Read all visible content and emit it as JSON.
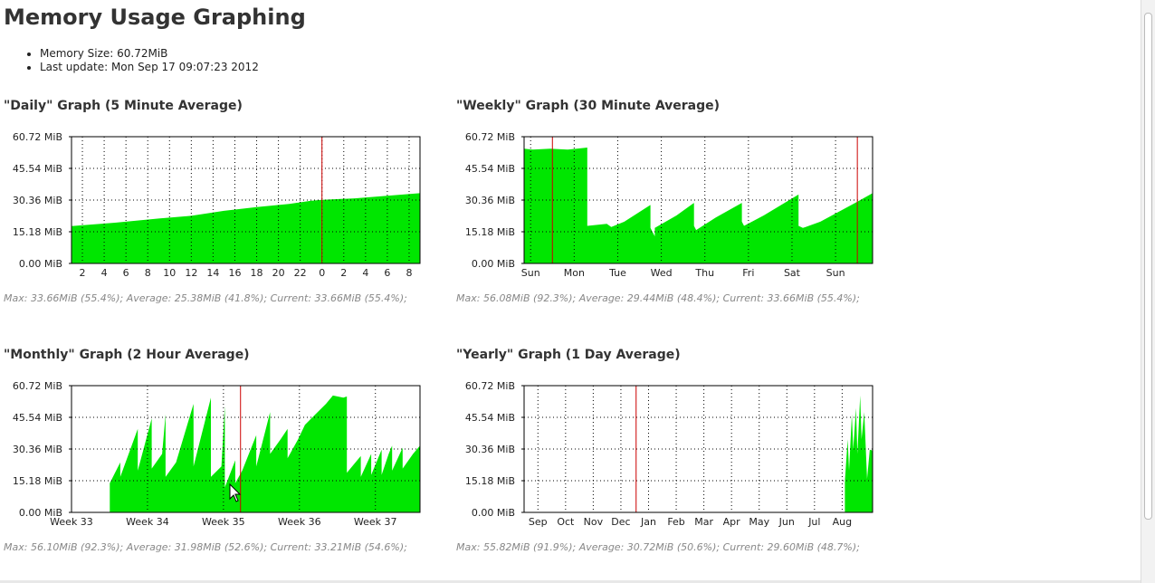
{
  "page": {
    "title": "Memory Usage Graphing",
    "info": [
      "Memory Size: 60.72MiB",
      "Last update: Mon Sep 17 09:07:23 2012"
    ]
  },
  "colors": {
    "fill": "#00e600",
    "marker": "#cc0000",
    "grid": "#000000"
  },
  "chart_data": [
    {
      "type": "area",
      "title": "\"Daily\" Graph (5 Minute Average)",
      "ylim": [
        0,
        60.72
      ],
      "yticks": [
        {
          "value": 60.72,
          "label": "60.72 MiB"
        },
        {
          "value": 45.54,
          "label": "45.54 MiB"
        },
        {
          "value": 30.36,
          "label": "30.36 MiB"
        },
        {
          "value": 15.18,
          "label": "15.18 MiB"
        },
        {
          "value": 0,
          "label": "0.00 MiB"
        }
      ],
      "xlim": [
        0,
        32
      ],
      "xticks": [
        {
          "x": 1,
          "label": "2"
        },
        {
          "x": 3,
          "label": "4"
        },
        {
          "x": 5,
          "label": "6"
        },
        {
          "x": 7,
          "label": "8"
        },
        {
          "x": 9,
          "label": "10"
        },
        {
          "x": 11,
          "label": "12"
        },
        {
          "x": 13,
          "label": "14"
        },
        {
          "x": 15,
          "label": "16"
        },
        {
          "x": 17,
          "label": "18"
        },
        {
          "x": 19,
          "label": "20"
        },
        {
          "x": 21,
          "label": "22"
        },
        {
          "x": 23,
          "label": "0"
        },
        {
          "x": 25,
          "label": "2"
        },
        {
          "x": 27,
          "label": "4"
        },
        {
          "x": 29,
          "label": "6"
        },
        {
          "x": 31,
          "label": "8"
        }
      ],
      "marker_x": 23,
      "points": [
        [
          0,
          17.9
        ],
        [
          4,
          19.5
        ],
        [
          8,
          21.5
        ],
        [
          11,
          22.8
        ],
        [
          14,
          25.2
        ],
        [
          17,
          27.0
        ],
        [
          20,
          28.5
        ],
        [
          22,
          30.0
        ],
        [
          23,
          30.5
        ],
        [
          26,
          31.2
        ],
        [
          29,
          32.4
        ],
        [
          32,
          33.66
        ]
      ],
      "stats": "Max: 33.66MiB (55.4%); Average: 25.38MiB (41.8%); Current: 33.66MiB (55.4%);"
    },
    {
      "type": "area",
      "title": "\"Weekly\" Graph (30 Minute Average)",
      "ylim": [
        0,
        60.72
      ],
      "yticks": [
        {
          "value": 60.72,
          "label": "60.72 MiB"
        },
        {
          "value": 45.54,
          "label": "45.54 MiB"
        },
        {
          "value": 30.36,
          "label": "30.36 MiB"
        },
        {
          "value": 15.18,
          "label": "15.18 MiB"
        },
        {
          "value": 0,
          "label": "0.00 MiB"
        }
      ],
      "xlim": [
        0,
        8
      ],
      "xticks": [
        {
          "x": 0.15,
          "label": "Sun"
        },
        {
          "x": 1.15,
          "label": "Mon"
        },
        {
          "x": 2.15,
          "label": "Tue"
        },
        {
          "x": 3.15,
          "label": "Wed"
        },
        {
          "x": 4.15,
          "label": "Thu"
        },
        {
          "x": 5.15,
          "label": "Fri"
        },
        {
          "x": 6.15,
          "label": "Sat"
        },
        {
          "x": 7.15,
          "label": "Sun"
        }
      ],
      "marker_x": [
        0.65,
        7.65
      ],
      "points": [
        [
          0,
          55
        ],
        [
          0.2,
          54.5
        ],
        [
          0.6,
          55
        ],
        [
          1.0,
          54.5
        ],
        [
          1.45,
          55.5
        ],
        [
          1.45,
          18
        ],
        [
          1.9,
          19
        ],
        [
          2.0,
          17.5
        ],
        [
          2.3,
          20
        ],
        [
          2.9,
          28
        ],
        [
          2.9,
          17
        ],
        [
          3.0,
          13
        ],
        [
          3.0,
          17
        ],
        [
          3.5,
          23
        ],
        [
          3.9,
          29
        ],
        [
          3.9,
          18
        ],
        [
          3.95,
          16
        ],
        [
          4.4,
          22
        ],
        [
          5.0,
          29
        ],
        [
          5.0,
          20
        ],
        [
          5.05,
          18
        ],
        [
          5.5,
          23
        ],
        [
          6.3,
          33
        ],
        [
          6.3,
          18
        ],
        [
          6.4,
          17
        ],
        [
          6.8,
          20
        ],
        [
          7.6,
          29
        ],
        [
          8,
          33.66
        ]
      ],
      "stats": "Max: 56.08MiB (92.3%); Average: 29.44MiB (48.4%); Current: 33.66MiB (55.4%);"
    },
    {
      "type": "area",
      "title": "\"Monthly\" Graph (2 Hour Average)",
      "ylim": [
        0,
        60.72
      ],
      "yticks": [
        {
          "value": 60.72,
          "label": "60.72 MiB"
        },
        {
          "value": 45.54,
          "label": "45.54 MiB"
        },
        {
          "value": 30.36,
          "label": "30.36 MiB"
        },
        {
          "value": 15.18,
          "label": "15.18 MiB"
        },
        {
          "value": 0,
          "label": "0.00 MiB"
        }
      ],
      "xlim": [
        0,
        100
      ],
      "xticks": [
        {
          "x": 0,
          "label": "Week 33"
        },
        {
          "x": 21.8,
          "label": "Week 34"
        },
        {
          "x": 43.6,
          "label": "Week 35"
        },
        {
          "x": 65.4,
          "label": "Week 36"
        },
        {
          "x": 87.2,
          "label": "Week 37"
        }
      ],
      "marker_x": 48.5,
      "points": [
        [
          0,
          0
        ],
        [
          11,
          0
        ],
        [
          11,
          14
        ],
        [
          14,
          24
        ],
        [
          14,
          17
        ],
        [
          19,
          40
        ],
        [
          19,
          20
        ],
        [
          23,
          45
        ],
        [
          23,
          21
        ],
        [
          26,
          28
        ],
        [
          27,
          47
        ],
        [
          27,
          17
        ],
        [
          30,
          24
        ],
        [
          35,
          52
        ],
        [
          35,
          22
        ],
        [
          40,
          55
        ],
        [
          40,
          17
        ],
        [
          43,
          22
        ],
        [
          44,
          51
        ],
        [
          44,
          12
        ],
        [
          47,
          25
        ],
        [
          47,
          14
        ],
        [
          49,
          20
        ],
        [
          53,
          37
        ],
        [
          53,
          22
        ],
        [
          57,
          48
        ],
        [
          57,
          28
        ],
        [
          60,
          35
        ],
        [
          62,
          40
        ],
        [
          62,
          26
        ],
        [
          65,
          35
        ],
        [
          67,
          42
        ],
        [
          70,
          47
        ],
        [
          73,
          52
        ],
        [
          75,
          56
        ],
        [
          78,
          55
        ],
        [
          79,
          55.5
        ],
        [
          79,
          19
        ],
        [
          83,
          27
        ],
        [
          83,
          17
        ],
        [
          86,
          28
        ],
        [
          86,
          18
        ],
        [
          89,
          30
        ],
        [
          89,
          18
        ],
        [
          91,
          28
        ],
        [
          92,
          32
        ],
        [
          92,
          20
        ],
        [
          95,
          31
        ],
        [
          95,
          21
        ],
        [
          98,
          28
        ],
        [
          100,
          32
        ]
      ],
      "stats": "Max: 56.10MiB (92.3%); Average: 31.98MiB (52.6%); Current: 33.21MiB (54.6%);"
    },
    {
      "type": "area",
      "title": "\"Yearly\" Graph (1 Day Average)",
      "ylim": [
        0,
        60.72
      ],
      "yticks": [
        {
          "value": 60.72,
          "label": "60.72 MiB"
        },
        {
          "value": 45.54,
          "label": "45.54 MiB"
        },
        {
          "value": 30.36,
          "label": "30.36 MiB"
        },
        {
          "value": 15.18,
          "label": "15.18 MiB"
        },
        {
          "value": 0,
          "label": "0.00 MiB"
        }
      ],
      "xlim": [
        0,
        12.6
      ],
      "xticks": [
        {
          "x": 0.5,
          "label": "Sep"
        },
        {
          "x": 1.5,
          "label": "Oct"
        },
        {
          "x": 2.5,
          "label": "Nov"
        },
        {
          "x": 3.5,
          "label": "Dec"
        },
        {
          "x": 4.5,
          "label": "Jan"
        },
        {
          "x": 5.5,
          "label": "Feb"
        },
        {
          "x": 6.5,
          "label": "Mar"
        },
        {
          "x": 7.5,
          "label": "Apr"
        },
        {
          "x": 8.5,
          "label": "May"
        },
        {
          "x": 9.5,
          "label": "Jun"
        },
        {
          "x": 10.5,
          "label": "Jul"
        },
        {
          "x": 11.5,
          "label": "Aug"
        }
      ],
      "marker_x": 4.05,
      "points": [
        [
          0,
          0
        ],
        [
          11.6,
          0
        ],
        [
          11.6,
          15
        ],
        [
          11.7,
          35
        ],
        [
          11.75,
          20
        ],
        [
          11.85,
          47
        ],
        [
          11.9,
          30
        ],
        [
          12.0,
          50
        ],
        [
          12.05,
          28
        ],
        [
          12.15,
          56
        ],
        [
          12.2,
          35
        ],
        [
          12.3,
          48
        ],
        [
          12.4,
          16
        ],
        [
          12.5,
          30
        ],
        [
          12.6,
          29.6
        ]
      ],
      "stats": "Max: 55.82MiB (91.9%); Average: 30.72MiB (50.6%); Current: 29.60MiB (48.7%);"
    }
  ]
}
